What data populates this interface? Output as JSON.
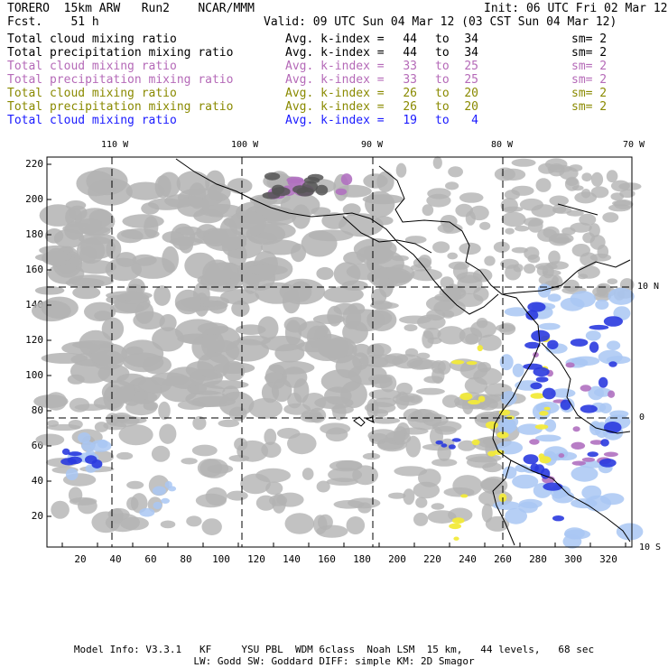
{
  "header": {
    "model": "TORERO  15km ARW   Run2    NCAR/MMM",
    "forecast": "Fcst.    51 h",
    "init": "Init: 06 UTC Fri 02 Mar 12",
    "valid": "Valid: 09 UTC Sun 04 Mar 12 (03 CST Sun 04 Mar 12)"
  },
  "legend": [
    {
      "label": "Total cloud mixing ratio",
      "avg": "Avg. k-index =",
      "from": "44",
      "to_word": "to",
      "to": "34",
      "sm": "sm= 2",
      "color": "#000000"
    },
    {
      "label": "Total precipitation mixing ratio",
      "avg": "Avg. k-index =",
      "from": "44",
      "to_word": "to",
      "to": "34",
      "sm": "sm= 2",
      "color": "#000000"
    },
    {
      "label": "Total cloud mixing ratio",
      "avg": "Avg. k-index =",
      "from": "33",
      "to_word": "to",
      "to": "25",
      "sm": "sm= 2",
      "color": "#b56ab8"
    },
    {
      "label": "Total precipitation mixing ratio",
      "avg": "Avg. k-index =",
      "from": "33",
      "to_word": "to",
      "to": "25",
      "sm": "sm= 2",
      "color": "#b56ab8"
    },
    {
      "label": "Total cloud mixing ratio",
      "avg": "Avg. k-index =",
      "from": "26",
      "to_word": "to",
      "to": "20",
      "sm": "sm= 2",
      "color": "#8a8a00"
    },
    {
      "label": "Total precipitation mixing ratio",
      "avg": "Avg. k-index =",
      "from": "26",
      "to_word": "to",
      "to": "20",
      "sm": "sm= 2",
      "color": "#8a8a00"
    },
    {
      "label": "Total cloud mixing ratio",
      "avg": "Avg. k-index =",
      "from": "19",
      "to_word": "to",
      "to": "4",
      "sm": "",
      "color": "#1a1aff"
    }
  ],
  "map": {
    "lon_labels": [
      "110 W",
      "100 W",
      "90 W",
      "80 W",
      "70 W"
    ],
    "lat_labels": [
      "10 N",
      "0",
      "10 S"
    ],
    "y_ticks": [
      "220",
      "200",
      "180",
      "160",
      "140",
      "120",
      "100",
      "80",
      "60",
      "40",
      "20"
    ],
    "x_ticks": [
      "20",
      "40",
      "60",
      "80",
      "100",
      "120",
      "140",
      "160",
      "180",
      "200",
      "220",
      "240",
      "260",
      "280",
      "300",
      "320"
    ],
    "colors": {
      "cloud_gray": "#b3b3b3",
      "dark_gray": "#555555",
      "purple": "#b070c0",
      "blue": "#2a3adf",
      "light_blue": "#a9c7f3",
      "yellow": "#f2ea3a"
    }
  },
  "footer": {
    "line1": "Model Info: V3.3.1   KF     YSU PBL  WDM 6class  Noah LSM  15 km,   44 levels,   68 sec",
    "line2": "LW: Godd SW: Goddard DIFF: simple KM: 2D Smagor"
  }
}
